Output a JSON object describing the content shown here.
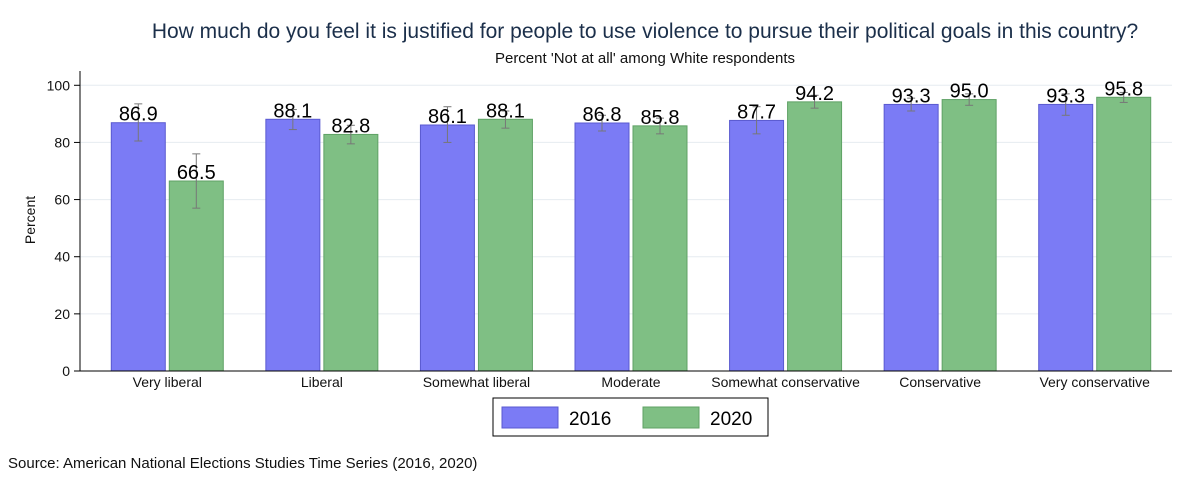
{
  "chart_data": {
    "type": "bar",
    "title": "How much do you feel it is justified for people to use violence to pursue their political goals in this country?",
    "subtitle": "Percent 'Not at all' among White respondents",
    "ylabel": "Percent",
    "xlabel": "",
    "ylim": [
      0,
      105
    ],
    "yticks": [
      0,
      20,
      40,
      60,
      80,
      100
    ],
    "grid": true,
    "legend_position": "bottom",
    "categories": [
      "Very liberal",
      "Liberal",
      "Somewhat liberal",
      "Moderate",
      "Somewhat conservative",
      "Conservative",
      "Very conservative"
    ],
    "series": [
      {
        "name": "2016",
        "color": "#7b7bf5",
        "values": [
          86.9,
          88.1,
          86.1,
          86.8,
          87.7,
          93.3,
          93.3
        ],
        "labels": [
          "86.9",
          "88.1",
          "86.1",
          "86.8",
          "87.7",
          "93.3",
          "93.3"
        ],
        "ci_low": [
          80.5,
          84.5,
          80.0,
          84.0,
          83.0,
          91.0,
          89.5
        ],
        "ci_high": [
          93.5,
          91.5,
          92.5,
          89.5,
          92.5,
          95.5,
          97.0
        ]
      },
      {
        "name": "2020",
        "color": "#7fbf84",
        "values": [
          66.5,
          82.8,
          88.1,
          85.8,
          94.2,
          95.0,
          95.8
        ],
        "labels": [
          "66.5",
          "82.8",
          "88.1",
          "85.8",
          "94.2",
          "95.0",
          "95.8"
        ],
        "ci_low": [
          57.0,
          79.5,
          85.0,
          83.0,
          92.0,
          93.0,
          94.0
        ],
        "ci_high": [
          76.0,
          86.0,
          91.0,
          88.5,
          96.5,
          97.0,
          97.5
        ]
      }
    ],
    "note": "Source: American National Elections Studies Time Series (2016, 2020)"
  }
}
